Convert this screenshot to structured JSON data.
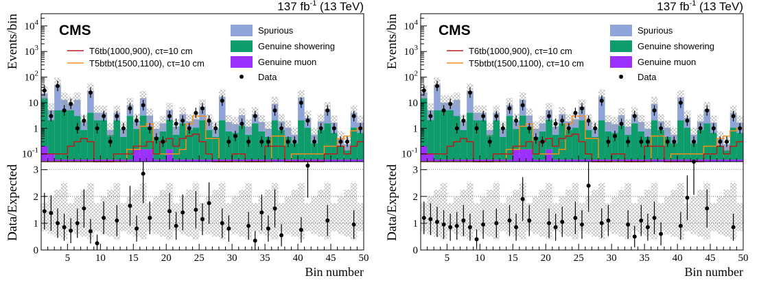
{
  "header": {
    "lumi": "137 fb",
    "lumi_exp": "-1",
    "energy": " (13 TeV)",
    "experiment": "CMS"
  },
  "colors": {
    "spurious": "#8fa4d9",
    "genuine_showering": "#0f9c6b",
    "genuine_muon": "#9b30ff",
    "signal_t6tb": "#c0191d",
    "signal_t5btbt": "#ff8c1a",
    "data": "#000000"
  },
  "chart_data": [
    {
      "type": "bar",
      "panel": "left",
      "xlabel": "Bin number",
      "ylabel_top": "Events/bin",
      "ylabel_bottom": "Data/Expected",
      "xlim": [
        1,
        50
      ],
      "ylim_top": [
        0.05,
        30000
      ],
      "ylog_top": true,
      "ylim_bottom": [
        0,
        3.3
      ],
      "xticks": [
        "5",
        "10",
        "15",
        "20",
        "25",
        "30",
        "35",
        "40",
        "45",
        "50"
      ],
      "yticks_top": [
        "10^{-1}",
        "1",
        "10",
        "10^{2}",
        "10^{3}",
        "10^{4}"
      ],
      "yticks_bottom": [
        "0",
        "1",
        "2",
        "3"
      ],
      "legend": [
        {
          "label": "Spurious",
          "kind": "fill",
          "color_key": "spurious"
        },
        {
          "label": "Genuine showering",
          "kind": "fill",
          "color_key": "genuine_showering"
        },
        {
          "label": "Genuine muon",
          "kind": "fill",
          "color_key": "genuine_muon"
        },
        {
          "label": "T6tb(1000,900), cτ=10 cm",
          "kind": "line",
          "color_key": "signal_t6tb"
        },
        {
          "label": "T5btbt(1500,1100), cτ=10 cm",
          "kind": "line",
          "color_key": "signal_t5btbt"
        },
        {
          "label": "Data",
          "kind": "marker",
          "color_key": "data"
        }
      ],
      "series": [
        {
          "name": "Spurious",
          "values": [
            8,
            3,
            45,
            8,
            4,
            10,
            1,
            25,
            2,
            2,
            0.3,
            2,
            0.5,
            5,
            1,
            12,
            2,
            0.5,
            0.8,
            3,
            0.6,
            2,
            1,
            1.2,
            5,
            1,
            0.5,
            15,
            1,
            0.8,
            2,
            0.6,
            2,
            1,
            0.5,
            7,
            1,
            0.6,
            0.3,
            14,
            1.5,
            0.3,
            1,
            4,
            1,
            0.2,
            0.1,
            3,
            1
          ]
        },
        {
          "name": "Genuine showering",
          "values": [
            15,
            2,
            5,
            5,
            5,
            3,
            0.8,
            4,
            2,
            2,
            0.5,
            2,
            0.4,
            3,
            0.8,
            3,
            1,
            0.4,
            0.7,
            2,
            0.5,
            1.5,
            0.8,
            1,
            2,
            0.8,
            0.4,
            2,
            0.7,
            0.6,
            1.2,
            0.5,
            1.5,
            0.7,
            0.4,
            2,
            0.8,
            0.4,
            0.2,
            2,
            1,
            0.2,
            0.8,
            1.5,
            0.6,
            0.15,
            0.08,
            1,
            0.6
          ]
        },
        {
          "name": "Genuine muon",
          "values": [
            0.2,
            0.1,
            0.06,
            0.06,
            0.06,
            0.06,
            0.06,
            0.06,
            0.06,
            0.06,
            0.06,
            0.06,
            0.06,
            0.06,
            0.15,
            0.15,
            0.15,
            0.06,
            0.06,
            0.15,
            0.06,
            0.06,
            0.06,
            0.06,
            0.06,
            0.06,
            0.06,
            0.06,
            0.06,
            0.06,
            0.06,
            0.06,
            0.06,
            0.06,
            0.06,
            0.06,
            0.06,
            0.06,
            0.06,
            0.06,
            0.06,
            0.06,
            0.06,
            0.06,
            0.06,
            0.06,
            0.06,
            0.06,
            0.06
          ]
        },
        {
          "name": "T6tb(1000,900), cτ=10 cm",
          "values": [
            0.1,
            0.1,
            0.1,
            0.1,
            0.2,
            0.3,
            0.4,
            0.3,
            0.05,
            0.05,
            0.05,
            0.1,
            0.1,
            0.1,
            0.2,
            0.2,
            0.3,
            0.1,
            0.3,
            0.4,
            0.2,
            0.4,
            0.5,
            0.6,
            0.3,
            0.1,
            0.05,
            0.05,
            0.05,
            0.1,
            0.1,
            0.05,
            0.05,
            0.05,
            0.2,
            0.2,
            0.2,
            0.05,
            0.05,
            0.05,
            0.05,
            0.05,
            0.05,
            0.1,
            0.1,
            0.2,
            0.1,
            0.2,
            0.3
          ]
        },
        {
          "name": "T5btbt(1500,1100), cτ=10 cm",
          "values": [
            0.05,
            0.05,
            0.05,
            0.05,
            0.05,
            0.05,
            0.05,
            0.05,
            0.05,
            0.05,
            0.05,
            0.05,
            0.05,
            0.15,
            0.15,
            1.2,
            1.5,
            0.1,
            0.1,
            0.1,
            0.1,
            0.15,
            1.5,
            3,
            3,
            0.4,
            0.4,
            0.05,
            0.05,
            0.05,
            0.05,
            0.05,
            0.05,
            0.05,
            0.05,
            0.5,
            0.5,
            0.05,
            0.1,
            0.1,
            0.1,
            0.1,
            0.1,
            0.2,
            0.2,
            0.4,
            0.5,
            0.8,
            1
          ]
        },
        {
          "name": "Data",
          "values": [
            30,
            3,
            45,
            5,
            9,
            1,
            2,
            25,
            1,
            3,
            0.3,
            3,
            1,
            6,
            2,
            8,
            1,
            0.4,
            0.3,
            3,
            1.5,
            2,
            1,
            4,
            6,
            2,
            1,
            12,
            0.3,
            0.5,
            1.5,
            0.3,
            3,
            0.3,
            0.3,
            5,
            1,
            0.3,
            0.3,
            10,
            2,
            0.3,
            1,
            5,
            1,
            0.3,
            0.3,
            3,
            1
          ]
        },
        {
          "name": "Data/Expected",
          "values": [
            1.45,
            1.38,
            1.0,
            0.85,
            0.72,
            1.0,
            1.55,
            0.7,
            0.25,
            1.2,
            0,
            1.1,
            0,
            1.65,
            0.8,
            2.85,
            1.2,
            0,
            0,
            1.45,
            0.9,
            1.4,
            0,
            1.5,
            1.15,
            1.75,
            0,
            1.0,
            0.8,
            0,
            0,
            0.9,
            0.35,
            1.4,
            0.8,
            1.55,
            0.55,
            0,
            0,
            0.75,
            3.15,
            0,
            0,
            1.1,
            0,
            0,
            0,
            0.95,
            0
          ]
        }
      ]
    },
    {
      "type": "bar",
      "panel": "right",
      "xlabel": "Bin number",
      "ylabel_top": "Events/bin",
      "ylabel_bottom": "Data/Expected",
      "xlim": [
        1,
        50
      ],
      "ylim_top": [
        0.05,
        30000
      ],
      "ylog_top": true,
      "ylim_bottom": [
        0,
        3.3
      ],
      "xticks": [
        "5",
        "10",
        "15",
        "20",
        "25",
        "30",
        "35",
        "40",
        "45",
        "50"
      ],
      "yticks_top": [
        "10^{-1}",
        "1",
        "10",
        "10^{2}",
        "10^{3}",
        "10^{4}"
      ],
      "yticks_bottom": [
        "0",
        "1",
        "2",
        "3"
      ],
      "legend": [
        {
          "label": "Spurious",
          "kind": "fill",
          "color_key": "spurious"
        },
        {
          "label": "Genuine showering",
          "kind": "fill",
          "color_key": "genuine_showering"
        },
        {
          "label": "Genuine muon",
          "kind": "fill",
          "color_key": "genuine_muon"
        },
        {
          "label": "T6tb(1000,900), cτ=10 cm",
          "kind": "line",
          "color_key": "signal_t6tb"
        },
        {
          "label": "T5btbt(1500,1100), cτ=10 cm",
          "kind": "line",
          "color_key": "signal_t5btbt"
        },
        {
          "label": "Data",
          "kind": "marker",
          "color_key": "data"
        }
      ],
      "series": [
        {
          "name": "Spurious",
          "values": [
            10,
            3,
            45,
            5,
            5,
            10,
            1,
            25,
            2,
            2,
            0.3,
            2,
            0.5,
            5,
            1,
            10,
            2,
            0.5,
            0.8,
            3,
            0.6,
            2,
            1,
            1.2,
            5,
            1,
            0.5,
            15,
            1,
            0.8,
            2,
            0.6,
            2,
            1,
            0.5,
            7,
            1,
            0.6,
            0.3,
            14,
            1.5,
            0.3,
            1,
            4,
            1,
            0.2,
            0.1,
            3,
            1
          ]
        },
        {
          "name": "Genuine showering",
          "values": [
            15,
            2,
            5,
            5,
            5,
            3,
            0.8,
            4,
            2,
            2,
            0.5,
            2,
            0.4,
            3,
            0.8,
            3,
            1,
            0.4,
            0.7,
            2,
            0.5,
            1.5,
            0.8,
            1,
            2,
            0.8,
            0.4,
            2,
            0.7,
            0.6,
            1.2,
            0.5,
            1.5,
            0.7,
            0.4,
            2,
            0.8,
            0.4,
            0.2,
            2,
            1,
            0.2,
            0.8,
            1.5,
            0.6,
            0.15,
            0.08,
            1,
            0.6
          ]
        },
        {
          "name": "Genuine muon",
          "values": [
            0.2,
            0.1,
            0.06,
            0.06,
            0.06,
            0.06,
            0.06,
            0.06,
            0.06,
            0.06,
            0.06,
            0.06,
            0.06,
            0.06,
            0.15,
            0.15,
            0.15,
            0.06,
            0.06,
            0.15,
            0.06,
            0.06,
            0.06,
            0.06,
            0.06,
            0.06,
            0.06,
            0.06,
            0.06,
            0.06,
            0.06,
            0.06,
            0.06,
            0.06,
            0.06,
            0.06,
            0.06,
            0.06,
            0.06,
            0.06,
            0.06,
            0.06,
            0.06,
            0.06,
            0.06,
            0.06,
            0.06,
            0.06,
            0.06
          ]
        },
        {
          "name": "T6tb(1000,900), cτ=10 cm",
          "values": [
            0.1,
            0.1,
            0.1,
            0.1,
            0.2,
            0.3,
            0.4,
            0.3,
            0.05,
            0.05,
            0.05,
            0.1,
            0.1,
            0.1,
            0.2,
            0.2,
            0.3,
            0.1,
            0.3,
            0.4,
            0.2,
            0.4,
            0.5,
            0.6,
            0.3,
            0.1,
            0.05,
            0.05,
            0.05,
            0.1,
            0.1,
            0.05,
            0.05,
            0.05,
            0.2,
            0.2,
            0.2,
            0.05,
            0.05,
            0.05,
            0.05,
            0.05,
            0.05,
            0.1,
            0.1,
            0.2,
            0.1,
            0.2,
            0.3
          ]
        },
        {
          "name": "T5btbt(1500,1100), cτ=10 cm",
          "values": [
            0.05,
            0.05,
            0.05,
            0.05,
            0.05,
            0.05,
            0.05,
            0.05,
            0.05,
            0.05,
            0.05,
            0.05,
            0.05,
            0.15,
            0.15,
            1.2,
            1.5,
            0.1,
            0.1,
            0.1,
            0.1,
            0.15,
            1.5,
            3,
            3,
            0.4,
            0.4,
            0.05,
            0.05,
            0.05,
            0.05,
            0.05,
            0.05,
            0.05,
            0.05,
            0.5,
            0.5,
            0.05,
            0.1,
            0.1,
            0.1,
            0.1,
            0.1,
            0.2,
            0.2,
            0.4,
            0.5,
            0.8,
            1
          ]
        },
        {
          "name": "Data",
          "values": [
            30,
            3,
            45,
            5,
            9,
            1,
            2,
            25,
            1,
            3,
            0.3,
            3,
            1,
            6,
            2,
            8,
            1,
            0.4,
            0.3,
            3,
            1.5,
            2,
            1,
            4,
            6,
            2,
            1,
            12,
            0.3,
            0.5,
            1.5,
            0.3,
            3,
            0.3,
            0.3,
            5,
            1,
            0.3,
            0.3,
            10,
            2,
            0.3,
            1,
            5,
            1,
            0.3,
            0.3,
            3,
            1
          ]
        },
        {
          "name": "Data/Expected",
          "values": [
            1.2,
            1.15,
            1.05,
            0.95,
            0.85,
            0.9,
            1.1,
            0.85,
            0.4,
            0.95,
            0,
            1.0,
            0,
            1.1,
            0.85,
            1.9,
            1.1,
            0,
            0,
            1.0,
            0.85,
            1.05,
            0,
            1.2,
            0.95,
            2.4,
            0,
            1.0,
            1.1,
            0,
            0,
            0.95,
            0.5,
            1.1,
            0.85,
            1.2,
            0.6,
            0,
            0,
            0.9,
            1.95,
            3.3,
            0,
            1.55,
            0,
            0,
            0,
            0.85,
            0
          ]
        }
      ]
    }
  ]
}
